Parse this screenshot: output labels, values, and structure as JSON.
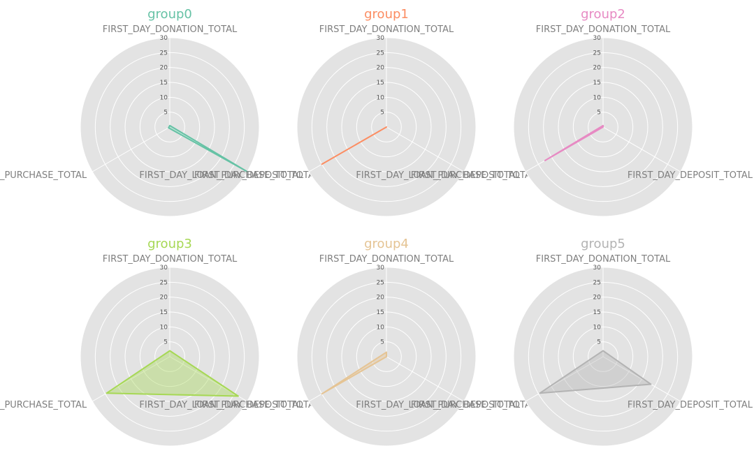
{
  "chart_data": {
    "type": "radar",
    "grid": true,
    "rlim": [
      0,
      30
    ],
    "rticks": [
      "5",
      "10",
      "15",
      "20",
      "25",
      "30"
    ],
    "axes": [
      "FIRST_DAY_DONATION_TOTAL",
      "FIRST_DAY_DEPOSIT_TOTAL",
      "FIRST_DAY_LOAN_PURCHASE_TOTAL"
    ],
    "background_color": "#e3e3e3",
    "panels": [
      {
        "title": "group0",
        "color": "#66c2a5",
        "values": [
          0.5,
          30,
          0.5
        ]
      },
      {
        "title": "group1",
        "color": "#fc8d62",
        "values": [
          0,
          0,
          25
        ]
      },
      {
        "title": "group2",
        "color": "#e78ac3",
        "values": [
          0.5,
          0,
          22.5
        ]
      },
      {
        "title": "group3",
        "color": "#a6d854",
        "values": [
          2,
          26.5,
          24.5
        ]
      },
      {
        "title": "group4",
        "color": "#e5c494",
        "values": [
          1.5,
          0,
          25
        ]
      },
      {
        "title": "group5",
        "color": "#b3b3b3",
        "values": [
          2,
          18.5,
          24.5
        ]
      }
    ]
  }
}
